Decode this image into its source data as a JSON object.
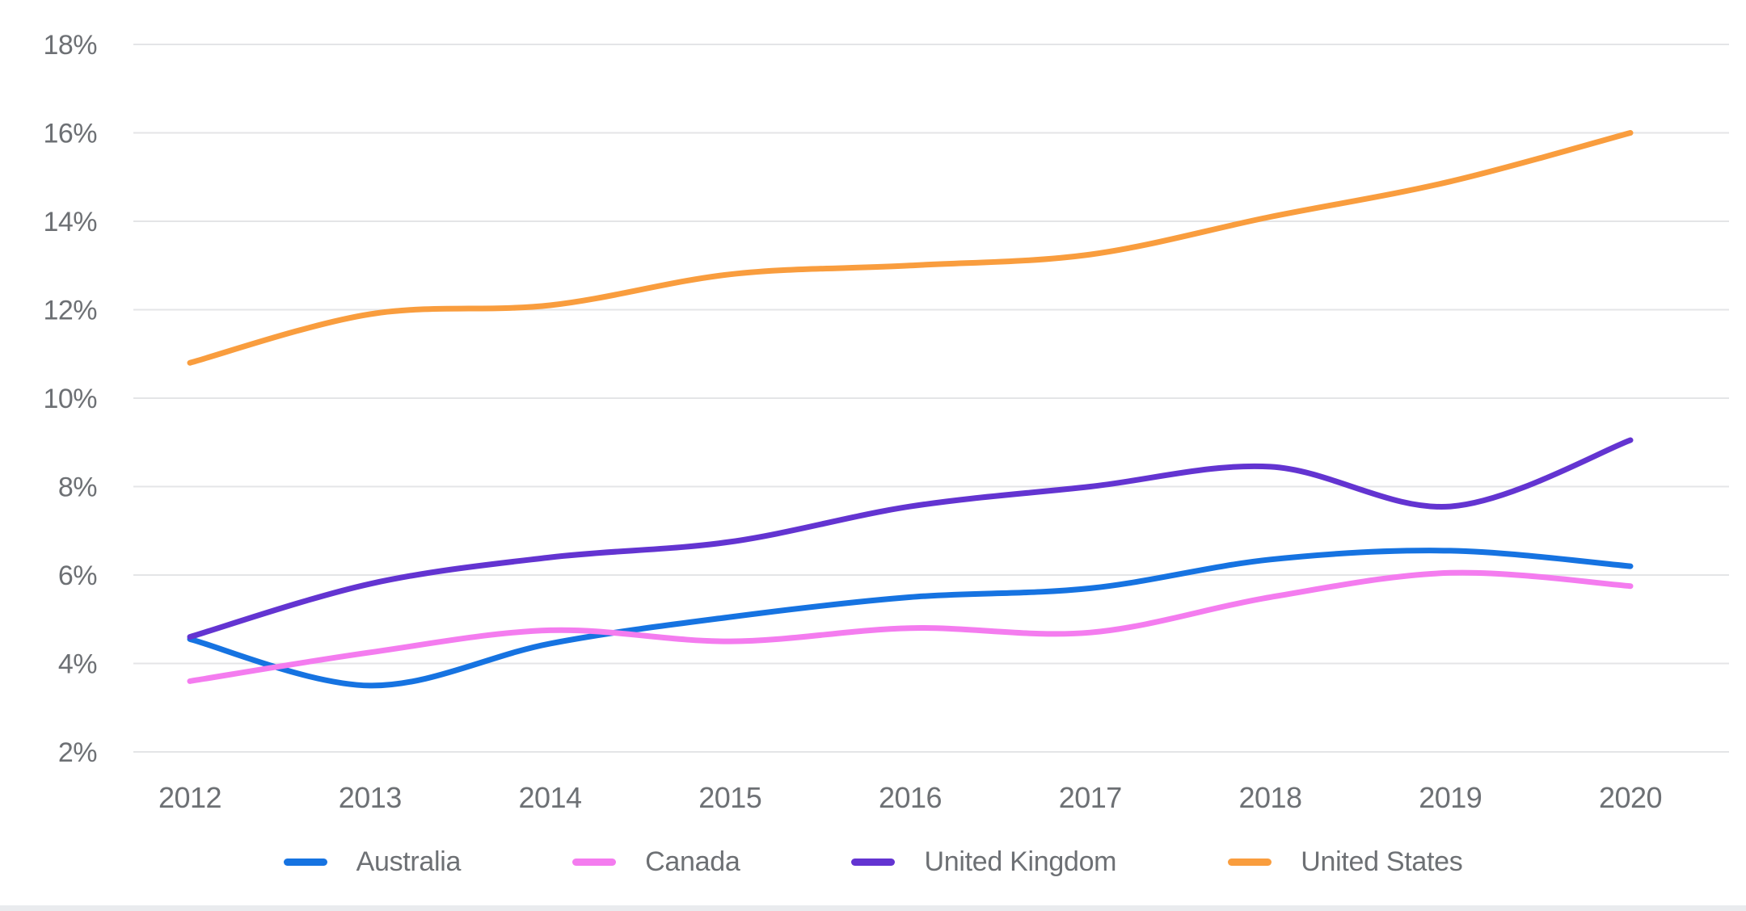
{
  "chart_data": {
    "type": "line",
    "title": "",
    "xlabel": "",
    "ylabel": "",
    "categories": [
      "2012",
      "2013",
      "2014",
      "2015",
      "2016",
      "2017",
      "2018",
      "2019",
      "2020"
    ],
    "series": [
      {
        "name": "Australia",
        "color": "#1673e1",
        "values": [
          4.55,
          3.5,
          4.45,
          5.05,
          5.5,
          5.7,
          6.35,
          6.55,
          6.2
        ]
      },
      {
        "name": "Canada",
        "color": "#f47cef",
        "values": [
          3.6,
          4.25,
          4.75,
          4.5,
          4.8,
          4.7,
          5.5,
          6.05,
          5.75
        ]
      },
      {
        "name": "United Kingdom",
        "color": "#6334d1",
        "values": [
          4.6,
          5.8,
          6.4,
          6.75,
          7.55,
          8.0,
          8.45,
          7.55,
          9.05
        ]
      },
      {
        "name": "United States",
        "color": "#f99d3e",
        "values": [
          10.8,
          11.9,
          12.1,
          12.8,
          13.0,
          13.25,
          14.1,
          14.9,
          16.0
        ]
      }
    ],
    "y_ticks": [
      18,
      16,
      14,
      12,
      10,
      8,
      6,
      4,
      2
    ],
    "y_tick_suffix": "%",
    "ylim": [
      2,
      18
    ],
    "grid": "horizontal-only",
    "legend_position": "bottom-center",
    "curve": "smooth",
    "style": {
      "grid_color": "#e4e5e7",
      "axis_text_color": "#6d7074",
      "background": "#ffffff"
    }
  }
}
